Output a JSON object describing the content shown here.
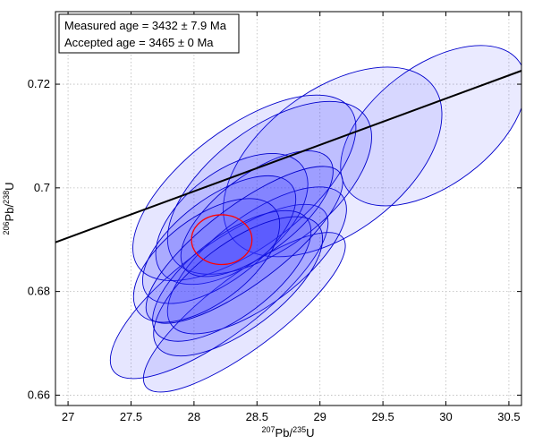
{
  "chart_data": {
    "type": "scatter",
    "title": "",
    "xlabel": {
      "sup1": "207",
      "main1": "Pb/",
      "sup2": "235",
      "main2": "U"
    },
    "ylabel": {
      "sup1": "206",
      "main1": "Pb/",
      "sup2": "238",
      "main2": "U"
    },
    "xlim": [
      26.9,
      30.6
    ],
    "ylim": [
      0.658,
      0.734
    ],
    "xticks": [
      27,
      27.5,
      28,
      28.5,
      29,
      29.5,
      30,
      30.5
    ],
    "xtick_labels": [
      "27",
      "27.5",
      "28",
      "28.5",
      "29",
      "29.5",
      "30",
      "30.5"
    ],
    "yticks": [
      0.66,
      0.68,
      0.7,
      0.72
    ],
    "ytick_labels": [
      "0.66",
      "0.68",
      "0.7",
      "0.72"
    ],
    "grid": true,
    "legend": {
      "placement": "top-left",
      "lines": [
        "Measured age = 3432 ± 7.9 Ma",
        "Accepted age = 3465 ± 0 Ma"
      ]
    },
    "fill_color": "#3333ff",
    "edge_color": "#0000cc",
    "highlight_color": "#ff0000",
    "regression_line": {
      "x": [
        26.9,
        30.6
      ],
      "y": [
        0.6895,
        0.7226
      ],
      "color": "#000000"
    },
    "ellipses": [
      {
        "cx": 29.1,
        "cy": 0.705,
        "w": 1.0,
        "h": 0.0275,
        "tilt": 0.95,
        "opacity": 0.1
      },
      {
        "cx": 28.4,
        "cy": 0.7,
        "w": 1.05,
        "h": 0.023,
        "tilt": 0.85,
        "opacity": 0.12
      },
      {
        "cx": 28.2,
        "cy": 0.68,
        "w": 1.05,
        "h": 0.017,
        "tilt": 0.95,
        "opacity": 0.12
      },
      {
        "cx": 28.4,
        "cy": 0.676,
        "w": 0.98,
        "h": 0.014,
        "tilt": 0.95,
        "opacity": 0.12
      },
      {
        "cx": 28.6,
        "cy": 0.7,
        "w": 0.95,
        "h": 0.023,
        "tilt": 0.9,
        "opacity": 0.12
      },
      {
        "cx": 28.3,
        "cy": 0.694,
        "w": 0.7,
        "h": 0.0185,
        "tilt": 0.9,
        "opacity": 0.12
      },
      {
        "cx": 28.5,
        "cy": 0.686,
        "w": 0.85,
        "h": 0.017,
        "tilt": 0.9,
        "opacity": 0.12
      },
      {
        "cx": 28.2,
        "cy": 0.69,
        "w": 0.72,
        "h": 0.016,
        "tilt": 0.9,
        "opacity": 0.12
      },
      {
        "cx": 28.3,
        "cy": 0.683,
        "w": 0.75,
        "h": 0.0155,
        "tilt": 0.9,
        "opacity": 0.12
      },
      {
        "cx": 28.5,
        "cy": 0.695,
        "w": 0.72,
        "h": 0.015,
        "tilt": 0.9,
        "opacity": 0.12
      },
      {
        "cx": 28.1,
        "cy": 0.686,
        "w": 0.68,
        "h": 0.0165,
        "tilt": 0.9,
        "opacity": 0.12
      },
      {
        "cx": 28.35,
        "cy": 0.681,
        "w": 0.8,
        "h": 0.0165,
        "tilt": 0.9,
        "opacity": 0.12
      },
      {
        "cx": 28.4,
        "cy": 0.689,
        "w": 0.95,
        "h": 0.015,
        "tilt": 0.9,
        "opacity": 0.12
      }
    ],
    "background_ellipses": [
      {
        "cx": 29.9,
        "cy": 0.712,
        "w": 0.85,
        "h": 0.023,
        "tilt": 0.9,
        "opacity": 0.1,
        "note": ""
      }
    ],
    "highlight_ellipse": {
      "cx": 28.22,
      "cy": 0.69,
      "w": 0.24,
      "h": 0.0048,
      "tilt": 0.0
    }
  }
}
